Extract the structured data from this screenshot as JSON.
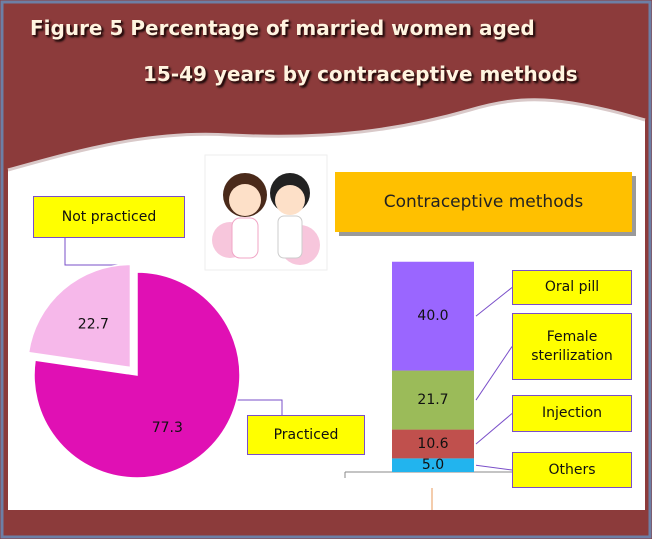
{
  "header": {
    "title_lines": [
      "Figure 5  Percentage of married women aged",
      "15-49 years by contraceptive methods"
    ]
  },
  "chart_data": [
    {
      "type": "pie",
      "categories": [
        "Practiced",
        "Not practiced"
      ],
      "values": [
        77.3,
        22.7
      ],
      "colors": [
        "#e010b4",
        "#f6b8ea"
      ]
    },
    {
      "type": "stacked-bar",
      "title": "Contraceptive methods",
      "series": [
        {
          "name": "Others",
          "color": "#22b4ee",
          "values": [
            5.0
          ],
          "value_labels": [
            "5.0"
          ]
        },
        {
          "name": "Injection",
          "color": "#c0504d",
          "values": [
            10.6
          ],
          "value_labels": [
            "10.6"
          ]
        },
        {
          "name": "Female sterilization",
          "color": "#9bbb59",
          "values": [
            21.7
          ],
          "value_labels": [
            "21.7"
          ]
        },
        {
          "name": "Oral pill",
          "color": "#9a66ff",
          "values": [
            40.0
          ],
          "value_labels": [
            "40.0"
          ]
        }
      ]
    }
  ]
}
